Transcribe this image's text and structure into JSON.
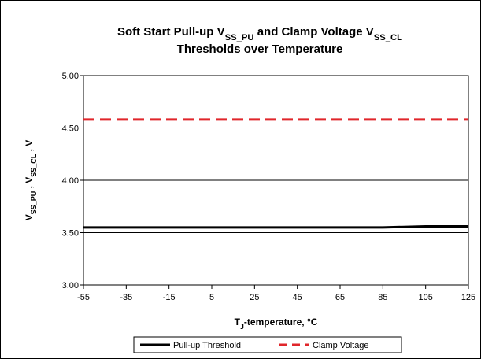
{
  "chart_data": {
    "type": "line",
    "title_lines": [
      [
        {
          "text": "Soft Start Pull-up V"
        },
        {
          "text": "SS_PU",
          "sub": true
        },
        {
          "text": " and Clamp Voltage V"
        },
        {
          "text": "SS_CL",
          "sub": true
        }
      ],
      [
        {
          "text": "Thresholds over Temperature"
        }
      ]
    ],
    "x_label": [
      {
        "text": "T"
      },
      {
        "text": "J",
        "sub": true
      },
      {
        "text": "-temperature, °C"
      }
    ],
    "y_label": [
      {
        "text": "V"
      },
      {
        "text": "SS_PU",
        "sub": true
      },
      {
        "text": " , V"
      },
      {
        "text": "SS_CL",
        "sub": true
      },
      {
        "text": " , V"
      }
    ],
    "x": [
      -55,
      -35,
      -15,
      5,
      25,
      45,
      65,
      85,
      105,
      125
    ],
    "series": [
      {
        "name": "Pull-up Threshold",
        "color": "#000000",
        "dash": false,
        "values": [
          3.55,
          3.55,
          3.55,
          3.55,
          3.55,
          3.55,
          3.55,
          3.55,
          3.56,
          3.56
        ]
      },
      {
        "name": "Clamp Voltage",
        "color": "#e0262b",
        "dash": true,
        "values": [
          4.58,
          4.58,
          4.58,
          4.58,
          4.58,
          4.58,
          4.58,
          4.58,
          4.58,
          4.58
        ]
      }
    ],
    "xlim": [
      -55,
      125
    ],
    "xticks": [
      -55,
      -35,
      -15,
      5,
      25,
      45,
      65,
      85,
      105,
      125
    ],
    "ylim": [
      3,
      5
    ],
    "yticks": [
      {
        "value": 3,
        "label": "3.00"
      },
      {
        "value": 3.5,
        "label": "3.50"
      },
      {
        "value": 4,
        "label": "4.00"
      },
      {
        "value": 4.5,
        "label": "4.50"
      },
      {
        "value": 5,
        "label": "5.00"
      }
    ],
    "grid": true,
    "legend": "bottom"
  }
}
